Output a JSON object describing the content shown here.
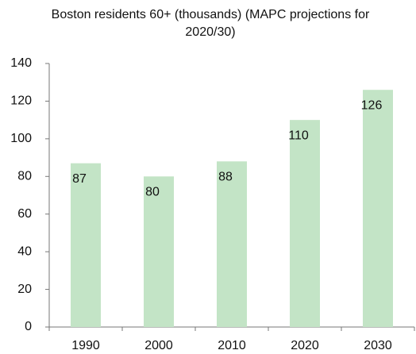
{
  "chart_data": {
    "type": "bar",
    "title": "Boston residents 60+ (thousands) (MAPC projections for 2020/30)",
    "categories": [
      "1990",
      "2000",
      "2010",
      "2020",
      "2030"
    ],
    "values": [
      87,
      80,
      88,
      110,
      126
    ],
    "color": "#c3e4c6",
    "ylim": [
      0,
      140
    ],
    "yticks": [
      0,
      20,
      40,
      60,
      80,
      100,
      120,
      140
    ],
    "grid": false
  }
}
